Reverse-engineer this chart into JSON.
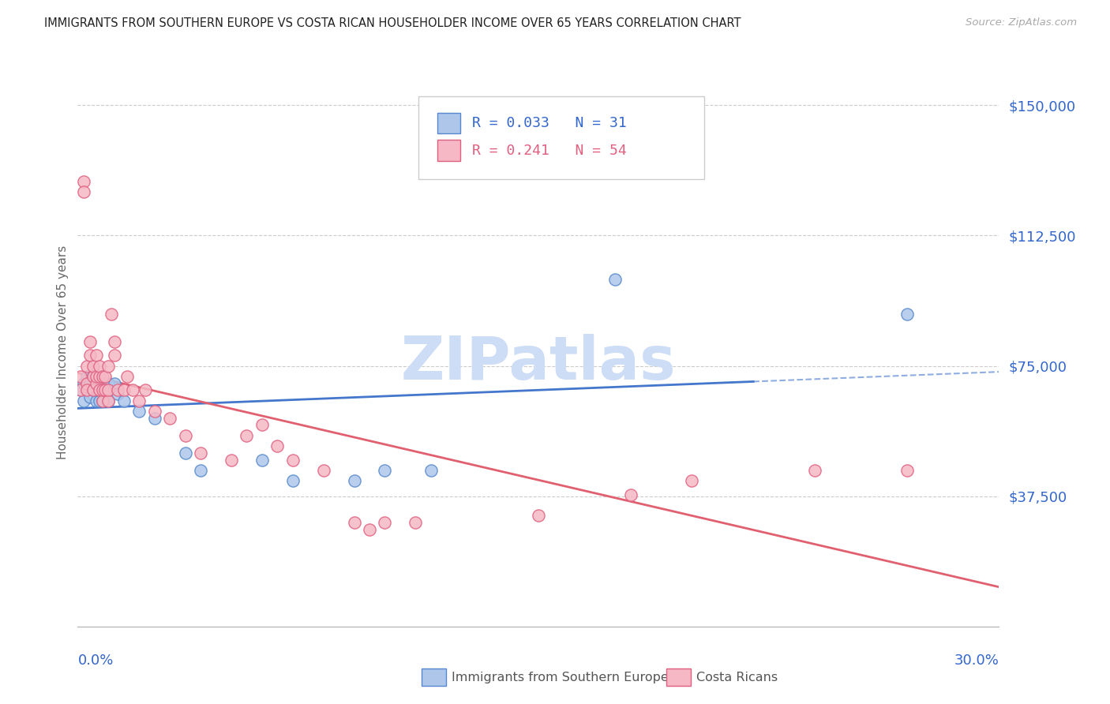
{
  "title": "IMMIGRANTS FROM SOUTHERN EUROPE VS COSTA RICAN HOUSEHOLDER INCOME OVER 65 YEARS CORRELATION CHART",
  "source": "Source: ZipAtlas.com",
  "ylabel": "Householder Income Over 65 years",
  "ytick_vals": [
    0,
    37500,
    75000,
    112500,
    150000
  ],
  "ytick_labels": [
    "",
    "$37,500",
    "$75,000",
    "$112,500",
    "$150,000"
  ],
  "xlim": [
    0.0,
    0.3
  ],
  "ylim": [
    10000,
    158000
  ],
  "blue_R": 0.033,
  "blue_N": 31,
  "pink_R": 0.241,
  "pink_N": 54,
  "blue_fill": "#aec6ea",
  "pink_fill": "#f5b8c4",
  "blue_edge": "#5588cc",
  "pink_edge": "#e06080",
  "blue_line": "#4477cc",
  "pink_line": "#e06070",
  "watermark": "ZIPatlas",
  "watermark_color": "#ccddf5",
  "legend_label_blue": "Immigrants from Southern Europe",
  "legend_label_pink": "Costa Ricans",
  "blue_scatter_x": [
    0.001,
    0.002,
    0.002,
    0.003,
    0.003,
    0.004,
    0.004,
    0.005,
    0.005,
    0.006,
    0.006,
    0.007,
    0.007,
    0.008,
    0.008,
    0.01,
    0.01,
    0.012,
    0.013,
    0.015,
    0.02,
    0.025,
    0.035,
    0.04,
    0.06,
    0.07,
    0.09,
    0.1,
    0.115,
    0.175,
    0.27
  ],
  "blue_scatter_y": [
    68000,
    70000,
    65000,
    68000,
    72000,
    66000,
    70000,
    68000,
    72000,
    65000,
    68000,
    70000,
    65000,
    65000,
    68000,
    65000,
    70000,
    70000,
    67000,
    65000,
    62000,
    60000,
    50000,
    45000,
    48000,
    42000,
    42000,
    45000,
    45000,
    100000,
    90000
  ],
  "pink_scatter_x": [
    0.001,
    0.001,
    0.002,
    0.002,
    0.003,
    0.003,
    0.003,
    0.004,
    0.004,
    0.005,
    0.005,
    0.005,
    0.006,
    0.006,
    0.006,
    0.007,
    0.007,
    0.007,
    0.008,
    0.008,
    0.008,
    0.009,
    0.009,
    0.01,
    0.01,
    0.01,
    0.011,
    0.012,
    0.012,
    0.013,
    0.015,
    0.016,
    0.018,
    0.02,
    0.022,
    0.025,
    0.03,
    0.035,
    0.04,
    0.05,
    0.055,
    0.06,
    0.065,
    0.07,
    0.08,
    0.09,
    0.095,
    0.1,
    0.11,
    0.15,
    0.18,
    0.2,
    0.24,
    0.27
  ],
  "pink_scatter_y": [
    68000,
    72000,
    128000,
    125000,
    70000,
    75000,
    68000,
    78000,
    82000,
    68000,
    72000,
    75000,
    70000,
    72000,
    78000,
    68000,
    72000,
    75000,
    65000,
    68000,
    72000,
    68000,
    72000,
    65000,
    68000,
    75000,
    90000,
    78000,
    82000,
    68000,
    68000,
    72000,
    68000,
    65000,
    68000,
    62000,
    60000,
    55000,
    50000,
    48000,
    55000,
    58000,
    52000,
    48000,
    45000,
    30000,
    28000,
    30000,
    30000,
    32000,
    38000,
    42000,
    45000,
    45000
  ]
}
